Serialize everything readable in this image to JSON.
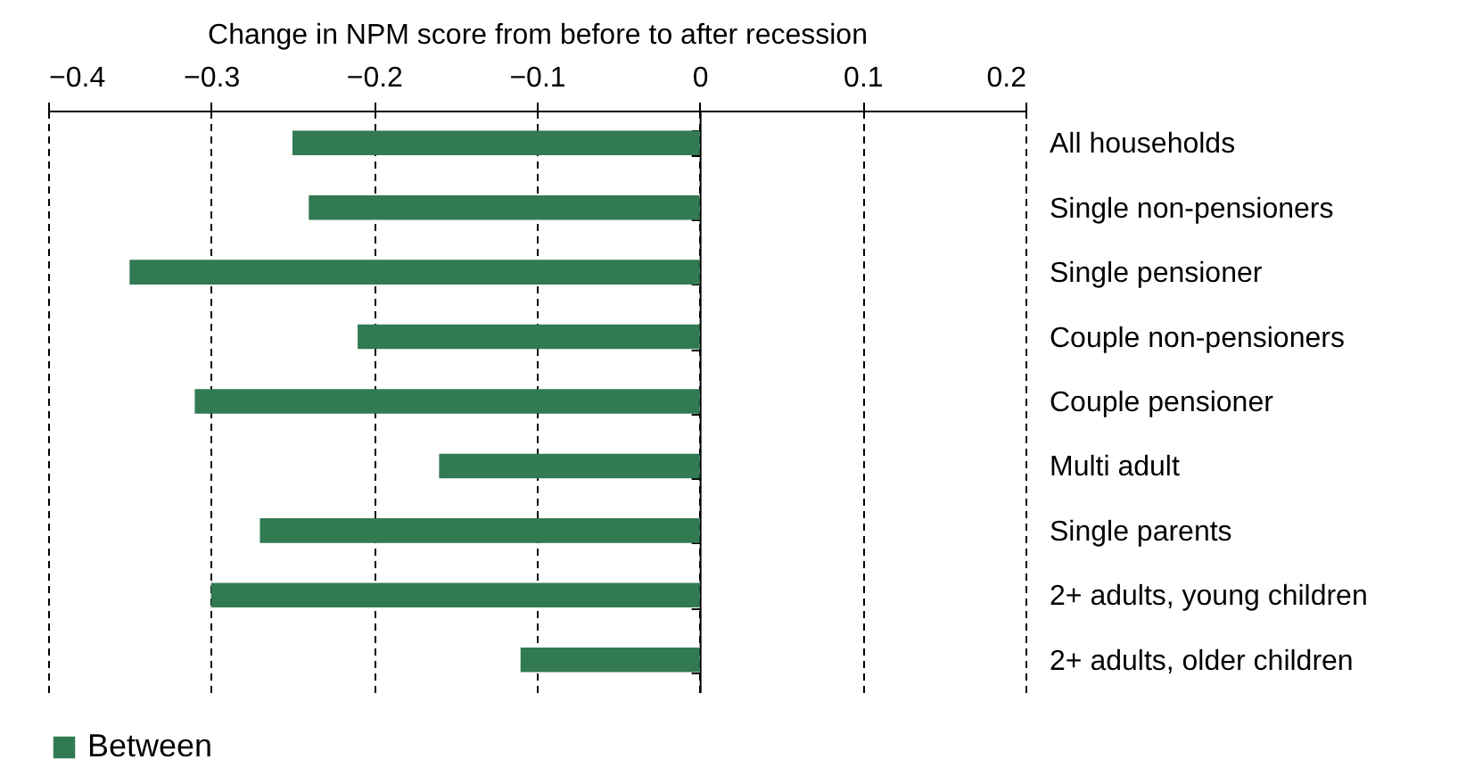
{
  "chart_data": {
    "type": "bar",
    "orientation": "horizontal",
    "xlabel": "Change in NPM score from before to after recession",
    "categories": [
      "All households",
      "Single non-pensioners",
      "Single pensioner",
      "Couple non-pensioners",
      "Couple pensioner",
      "Multi adult",
      "Single parents",
      "2+ adults, young children",
      "2+ adults, older children"
    ],
    "series": [
      {
        "name": "Between",
        "color": "#317a52",
        "values": [
          -0.25,
          -0.24,
          -0.35,
          -0.21,
          -0.31,
          -0.16,
          -0.27,
          -0.3,
          -0.11
        ]
      }
    ],
    "xlim": [
      -0.4,
      0.2
    ],
    "xticks": [
      -0.4,
      -0.3,
      -0.2,
      -0.1,
      0,
      0.1,
      0.2
    ],
    "grid": "x",
    "legend": "bottom"
  }
}
